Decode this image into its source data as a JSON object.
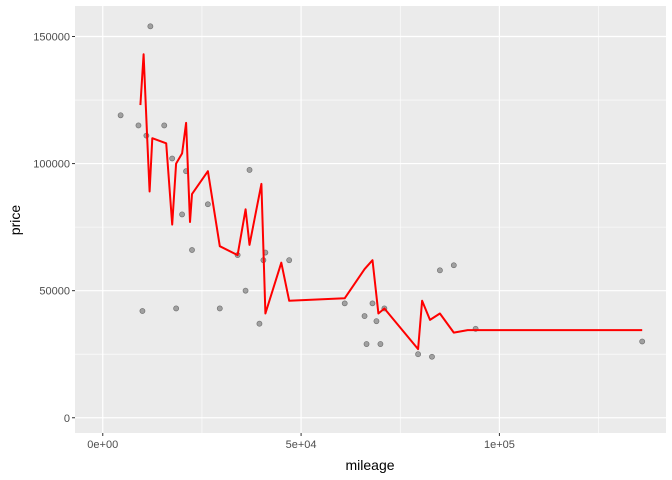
{
  "chart_data": {
    "type": "scatter",
    "xlabel": "mileage",
    "ylabel": "price",
    "xlim": [
      -7000,
      142000
    ],
    "ylim": [
      -6000,
      162000
    ],
    "x_ticks": [
      {
        "value": 0,
        "label": "0e+00"
      },
      {
        "value": 50000,
        "label": "5e+04"
      },
      {
        "value": 100000,
        "label": "1e+05"
      }
    ],
    "y_ticks": [
      {
        "value": 0,
        "label": "0"
      },
      {
        "value": 50000,
        "label": "50000"
      },
      {
        "value": 100000,
        "label": "100000"
      },
      {
        "value": 150000,
        "label": "150000"
      }
    ],
    "grid": true,
    "background": "#ebebeb",
    "point_color": "#808080",
    "line_color": "#ff0000",
    "points": [
      {
        "x": 4500,
        "y": 119000
      },
      {
        "x": 9000,
        "y": 115000
      },
      {
        "x": 10000,
        "y": 42000
      },
      {
        "x": 11000,
        "y": 111000
      },
      {
        "x": 12000,
        "y": 154000
      },
      {
        "x": 15500,
        "y": 115000
      },
      {
        "x": 17500,
        "y": 102000
      },
      {
        "x": 18500,
        "y": 43000
      },
      {
        "x": 20000,
        "y": 80000
      },
      {
        "x": 21000,
        "y": 97000
      },
      {
        "x": 22500,
        "y": 66000
      },
      {
        "x": 29500,
        "y": 43000
      },
      {
        "x": 26500,
        "y": 84000
      },
      {
        "x": 34000,
        "y": 64000
      },
      {
        "x": 36000,
        "y": 50000
      },
      {
        "x": 37000,
        "y": 97500
      },
      {
        "x": 39500,
        "y": 37000
      },
      {
        "x": 40500,
        "y": 62000
      },
      {
        "x": 41000,
        "y": 65000
      },
      {
        "x": 47000,
        "y": 62000
      },
      {
        "x": 61000,
        "y": 45000
      },
      {
        "x": 66000,
        "y": 40000
      },
      {
        "x": 66500,
        "y": 29000
      },
      {
        "x": 68000,
        "y": 45000
      },
      {
        "x": 69000,
        "y": 38000
      },
      {
        "x": 70000,
        "y": 29000
      },
      {
        "x": 71000,
        "y": 43000
      },
      {
        "x": 79500,
        "y": 25000
      },
      {
        "x": 83000,
        "y": 24000
      },
      {
        "x": 85000,
        "y": 58000
      },
      {
        "x": 88500,
        "y": 60000
      },
      {
        "x": 94000,
        "y": 35000
      },
      {
        "x": 136000,
        "y": 30000
      }
    ],
    "line": [
      {
        "x": 9500,
        "y": 123000
      },
      {
        "x": 10300,
        "y": 143000
      },
      {
        "x": 11200,
        "y": 110000
      },
      {
        "x": 11800,
        "y": 89000
      },
      {
        "x": 12500,
        "y": 110000
      },
      {
        "x": 16000,
        "y": 108000
      },
      {
        "x": 17500,
        "y": 76000
      },
      {
        "x": 18500,
        "y": 100000
      },
      {
        "x": 20000,
        "y": 104000
      },
      {
        "x": 21000,
        "y": 116000
      },
      {
        "x": 22000,
        "y": 77000
      },
      {
        "x": 22500,
        "y": 88000
      },
      {
        "x": 26500,
        "y": 97000
      },
      {
        "x": 29500,
        "y": 67500
      },
      {
        "x": 34000,
        "y": 64000
      },
      {
        "x": 36000,
        "y": 82000
      },
      {
        "x": 37000,
        "y": 68000
      },
      {
        "x": 40000,
        "y": 92000
      },
      {
        "x": 41000,
        "y": 41000
      },
      {
        "x": 45000,
        "y": 61000
      },
      {
        "x": 47000,
        "y": 46000
      },
      {
        "x": 61000,
        "y": 47000
      },
      {
        "x": 66000,
        "y": 58500
      },
      {
        "x": 68000,
        "y": 62000
      },
      {
        "x": 69500,
        "y": 41000
      },
      {
        "x": 71000,
        "y": 43000
      },
      {
        "x": 79500,
        "y": 27000
      },
      {
        "x": 80500,
        "y": 46000
      },
      {
        "x": 82500,
        "y": 38500
      },
      {
        "x": 85000,
        "y": 41000
      },
      {
        "x": 88500,
        "y": 33500
      },
      {
        "x": 92000,
        "y": 34500
      },
      {
        "x": 136000,
        "y": 34500
      }
    ]
  }
}
